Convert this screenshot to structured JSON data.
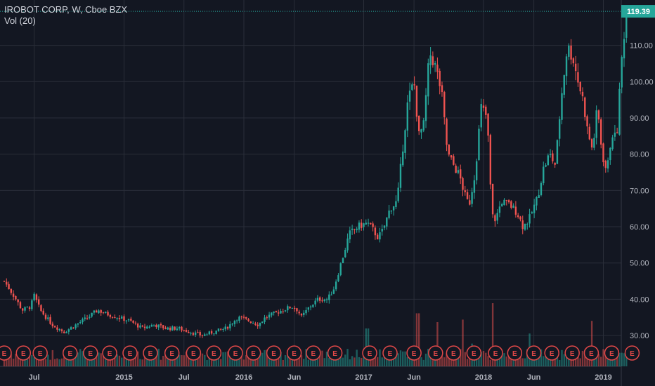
{
  "header": {
    "title": "IROBOT CORP, W, Cboe BZX",
    "indicator": "Vol (20)"
  },
  "colors": {
    "background": "#131722",
    "up": "#26a69a",
    "down": "#ef5350",
    "grid": "#2a2e39",
    "last_price": "#26a69a",
    "earnings": "#e04848"
  },
  "chart_data": {
    "type": "candlestick",
    "title": "IROBOT CORP",
    "interval": "W",
    "exchange": "Cboe BZX",
    "y_axis": {
      "position": "right",
      "ylim": [
        21.5,
        122.5
      ],
      "ticks": [
        "30.00",
        "40.00",
        "50.00",
        "60.00",
        "70.00",
        "80.00",
        "90.00",
        "100.00",
        "110.00"
      ]
    },
    "x_axis": {
      "ticks": [
        {
          "label": "Jul",
          "t": 0.25
        },
        {
          "label": "2015",
          "t": 1.0
        },
        {
          "label": "Jul",
          "t": 1.5
        },
        {
          "label": "2016",
          "t": 2.0
        },
        {
          "label": "Jun",
          "t": 2.42
        },
        {
          "label": "2017",
          "t": 3.0
        },
        {
          "label": "Jun",
          "t": 3.42
        },
        {
          "label": "2018",
          "t": 4.0
        },
        {
          "label": "Jun",
          "t": 4.42
        },
        {
          "label": "2019",
          "t": 5.0
        }
      ]
    },
    "last_price": "119.39",
    "price_path": [
      [
        0.0,
        45
      ],
      [
        0.08,
        41
      ],
      [
        0.15,
        37
      ],
      [
        0.22,
        38
      ],
      [
        0.25,
        41
      ],
      [
        0.3,
        37
      ],
      [
        0.4,
        33
      ],
      [
        0.5,
        31
      ],
      [
        0.6,
        33
      ],
      [
        0.7,
        35
      ],
      [
        0.78,
        37
      ],
      [
        0.85,
        36
      ],
      [
        0.95,
        35
      ],
      [
        1.05,
        34
      ],
      [
        1.15,
        32
      ],
      [
        1.25,
        33
      ],
      [
        1.35,
        32
      ],
      [
        1.45,
        32
      ],
      [
        1.55,
        31
      ],
      [
        1.65,
        30
      ],
      [
        1.75,
        31
      ],
      [
        1.85,
        32
      ],
      [
        1.95,
        35
      ],
      [
        2.05,
        34
      ],
      [
        2.12,
        33
      ],
      [
        2.18,
        35
      ],
      [
        2.25,
        36
      ],
      [
        2.32,
        37
      ],
      [
        2.4,
        38
      ],
      [
        2.45,
        37
      ],
      [
        2.48,
        35
      ],
      [
        2.55,
        38
      ],
      [
        2.62,
        40
      ],
      [
        2.7,
        40
      ],
      [
        2.75,
        43
      ],
      [
        2.82,
        51
      ],
      [
        2.88,
        58
      ],
      [
        2.95,
        60
      ],
      [
        3.03,
        61
      ],
      [
        3.08,
        59
      ],
      [
        3.12,
        57
      ],
      [
        3.16,
        59
      ],
      [
        3.22,
        65
      ],
      [
        3.28,
        67
      ],
      [
        3.32,
        80
      ],
      [
        3.37,
        95
      ],
      [
        3.42,
        100
      ],
      [
        3.46,
        85
      ],
      [
        3.5,
        88
      ],
      [
        3.55,
        108
      ],
      [
        3.6,
        104
      ],
      [
        3.65,
        97
      ],
      [
        3.7,
        80
      ],
      [
        3.75,
        77
      ],
      [
        3.8,
        74
      ],
      [
        3.85,
        68
      ],
      [
        3.88,
        66
      ],
      [
        3.93,
        75
      ],
      [
        3.98,
        93
      ],
      [
        4.03,
        90
      ],
      [
        4.07,
        63
      ],
      [
        4.1,
        62
      ],
      [
        4.15,
        67
      ],
      [
        4.22,
        66
      ],
      [
        4.28,
        64
      ],
      [
        4.33,
        60
      ],
      [
        4.38,
        62
      ],
      [
        4.45,
        68
      ],
      [
        4.5,
        76
      ],
      [
        4.55,
        80
      ],
      [
        4.6,
        77
      ],
      [
        4.65,
        96
      ],
      [
        4.7,
        110
      ],
      [
        4.75,
        106
      ],
      [
        4.79,
        100
      ],
      [
        4.83,
        95
      ],
      [
        4.87,
        86
      ],
      [
        4.91,
        81
      ],
      [
        4.95,
        93
      ],
      [
        4.99,
        80
      ],
      [
        5.03,
        75
      ],
      [
        5.07,
        86
      ],
      [
        5.11,
        84
      ],
      [
        5.15,
        105
      ],
      [
        5.19,
        119.39
      ]
    ],
    "series": [
      {
        "name": "Price",
        "style": "candles"
      },
      {
        "name": "Vol (20)",
        "style": "volume"
      }
    ],
    "volume_spikes": [
      [
        3.03,
        3.0
      ],
      [
        3.45,
        4.2
      ],
      [
        3.62,
        3.5
      ],
      [
        3.82,
        3.7
      ],
      [
        4.08,
        5.0
      ],
      [
        4.38,
        2.6
      ],
      [
        4.9,
        3.6
      ],
      [
        3.9,
        1.8
      ]
    ],
    "earnings": [
      {
        "label": "E",
        "t": 0.0
      },
      {
        "label": "E",
        "t": 0.16
      },
      {
        "label": "E",
        "t": 0.3
      },
      {
        "label": "E",
        "t": 0.55
      },
      {
        "label": "E",
        "t": 0.72
      },
      {
        "label": "E",
        "t": 0.88
      },
      {
        "label": "E",
        "t": 1.05
      },
      {
        "label": "E",
        "t": 1.22
      },
      {
        "label": "E",
        "t": 1.4
      },
      {
        "label": "E",
        "t": 1.58
      },
      {
        "label": "E",
        "t": 1.75
      },
      {
        "label": "E",
        "t": 1.93
      },
      {
        "label": "E",
        "t": 2.08
      },
      {
        "label": "E",
        "t": 2.25
      },
      {
        "label": "E",
        "t": 2.42
      },
      {
        "label": "E",
        "t": 2.58
      },
      {
        "label": "E",
        "t": 2.76
      },
      {
        "label": "E",
        "t": 3.05
      },
      {
        "label": "E",
        "t": 3.22
      },
      {
        "label": "E",
        "t": 3.42
      },
      {
        "label": "E",
        "t": 3.6
      },
      {
        "label": "E",
        "t": 3.75
      },
      {
        "label": "E",
        "t": 3.92
      },
      {
        "label": "E",
        "t": 4.1
      },
      {
        "label": "E",
        "t": 4.26
      },
      {
        "label": "E",
        "t": 4.42
      },
      {
        "label": "E",
        "t": 4.57
      },
      {
        "label": "E",
        "t": 4.74
      },
      {
        "label": "E",
        "t": 4.9
      },
      {
        "label": "E",
        "t": 5.07
      },
      {
        "label": "E",
        "t": 5.24
      }
    ],
    "grid": true
  }
}
